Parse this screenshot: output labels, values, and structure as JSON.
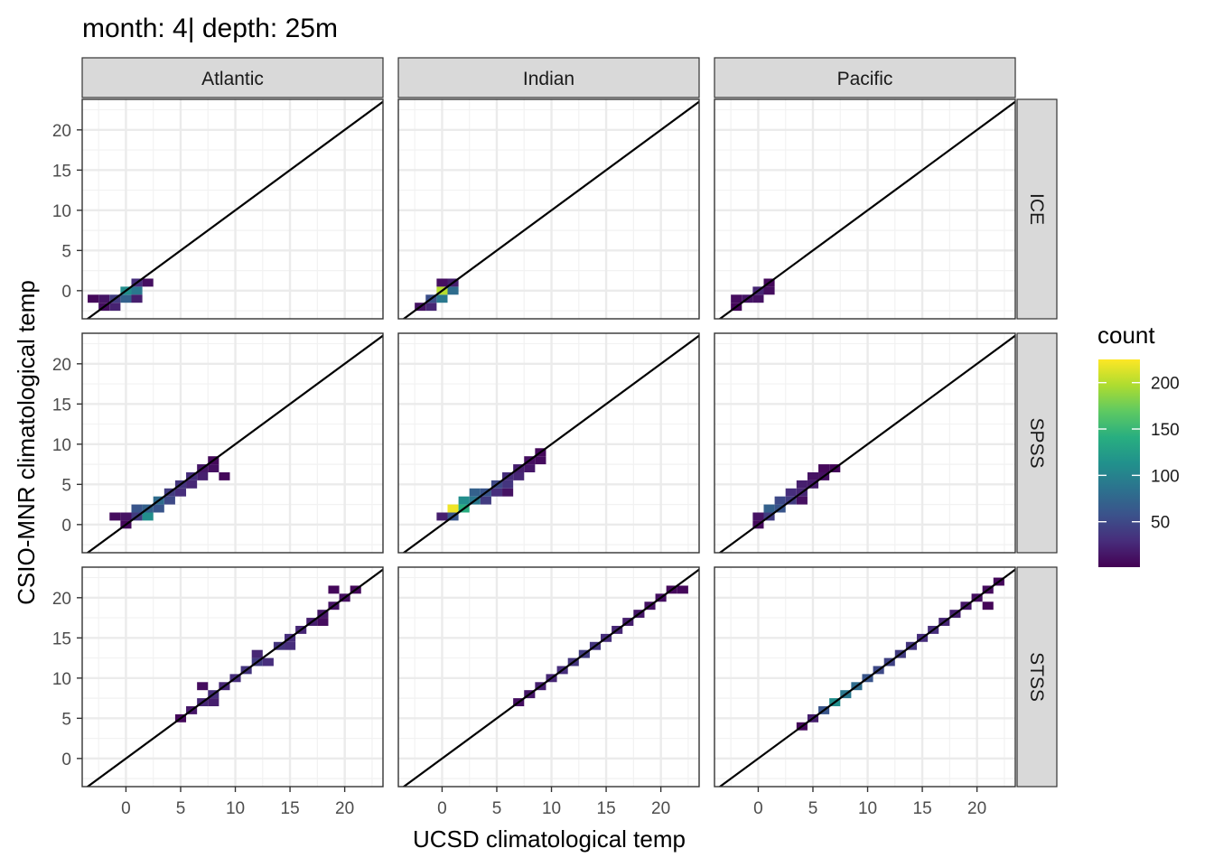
{
  "chart_data": {
    "type": "heatmap",
    "title": "month: 4| depth: 25m",
    "xlabel": "UCSD climatological temp",
    "ylabel": "CSIO-MNR climatological temp",
    "xlim": [
      -4,
      23.5
    ],
    "ylim": [
      -3.5,
      23.8
    ],
    "xticks": [
      0,
      5,
      10,
      15,
      20
    ],
    "yticks": [
      0,
      5,
      10,
      15,
      20
    ],
    "bin_width": 1,
    "grid": true,
    "reference_line": "y = x",
    "columns": [
      "Atlantic",
      "Indian",
      "Pacific"
    ],
    "rows": [
      "ICE",
      "SPSS",
      "STSS"
    ],
    "legend": {
      "title": "count",
      "position": "right",
      "breaks": [
        50,
        100,
        150,
        200
      ],
      "range": [
        1,
        225
      ],
      "palette": "viridis"
    },
    "panels": [
      {
        "row": "ICE",
        "col": "Atlantic",
        "cells": [
          [
            -3,
            -1,
            6
          ],
          [
            -2,
            -2,
            10
          ],
          [
            -2,
            -1,
            14
          ],
          [
            -1,
            -2,
            22
          ],
          [
            -1,
            -1,
            40
          ],
          [
            0,
            -1,
            70
          ],
          [
            0,
            0,
            110
          ],
          [
            1,
            0,
            90
          ],
          [
            1,
            1,
            30
          ],
          [
            2,
            1,
            10
          ],
          [
            1,
            -1,
            20
          ]
        ]
      },
      {
        "row": "ICE",
        "col": "Indian",
        "cells": [
          [
            -2,
            -2,
            12
          ],
          [
            -1,
            -2,
            25
          ],
          [
            -1,
            -1,
            55
          ],
          [
            0,
            -1,
            90
          ],
          [
            0,
            0,
            200
          ],
          [
            1,
            0,
            80
          ],
          [
            1,
            1,
            20
          ],
          [
            0,
            1,
            10
          ]
        ]
      },
      {
        "row": "ICE",
        "col": "Pacific",
        "cells": [
          [
            -2,
            -1,
            8
          ],
          [
            -2,
            -2,
            5
          ],
          [
            -1,
            -1,
            14
          ],
          [
            0,
            0,
            25
          ],
          [
            0,
            -1,
            12
          ],
          [
            1,
            0,
            9
          ],
          [
            1,
            1,
            6
          ]
        ]
      },
      {
        "row": "SPSS",
        "col": "Atlantic",
        "cells": [
          [
            -1,
            1,
            8
          ],
          [
            0,
            0,
            5
          ],
          [
            0,
            1,
            12
          ],
          [
            1,
            1,
            40
          ],
          [
            1,
            2,
            60
          ],
          [
            2,
            1,
            110
          ],
          [
            2,
            2,
            70
          ],
          [
            3,
            2,
            60
          ],
          [
            3,
            3,
            80
          ],
          [
            4,
            3,
            50
          ],
          [
            4,
            4,
            40
          ],
          [
            5,
            4,
            30
          ],
          [
            5,
            5,
            35
          ],
          [
            6,
            5,
            25
          ],
          [
            6,
            6,
            30
          ],
          [
            7,
            6,
            20
          ],
          [
            7,
            7,
            15
          ],
          [
            8,
            7,
            10
          ],
          [
            8,
            8,
            6
          ],
          [
            9,
            6,
            5
          ]
        ]
      },
      {
        "row": "SPSS",
        "col": "Indian",
        "cells": [
          [
            0,
            1,
            20
          ],
          [
            1,
            1,
            60
          ],
          [
            1,
            2,
            220
          ],
          [
            2,
            2,
            140
          ],
          [
            2,
            3,
            110
          ],
          [
            3,
            3,
            90
          ],
          [
            3,
            4,
            70
          ],
          [
            4,
            4,
            60
          ],
          [
            4,
            3,
            40
          ],
          [
            5,
            5,
            50
          ],
          [
            5,
            4,
            30
          ],
          [
            6,
            5,
            35
          ],
          [
            6,
            6,
            30
          ],
          [
            7,
            6,
            25
          ],
          [
            7,
            7,
            20
          ],
          [
            8,
            7,
            15
          ],
          [
            8,
            8,
            10
          ],
          [
            9,
            9,
            6
          ],
          [
            9,
            8,
            8
          ],
          [
            6,
            4,
            12
          ]
        ]
      },
      {
        "row": "SPSS",
        "col": "Pacific",
        "cells": [
          [
            0,
            0,
            6
          ],
          [
            0,
            1,
            12
          ],
          [
            1,
            1,
            40
          ],
          [
            1,
            2,
            70
          ],
          [
            2,
            2,
            60
          ],
          [
            2,
            3,
            50
          ],
          [
            3,
            3,
            40
          ],
          [
            3,
            4,
            30
          ],
          [
            4,
            4,
            25
          ],
          [
            4,
            5,
            20
          ],
          [
            5,
            5,
            18
          ],
          [
            5,
            6,
            12
          ],
          [
            6,
            6,
            10
          ],
          [
            6,
            7,
            6
          ],
          [
            7,
            7,
            5
          ],
          [
            4,
            3,
            10
          ]
        ]
      },
      {
        "row": "STSS",
        "col": "Atlantic",
        "cells": [
          [
            5,
            5,
            6
          ],
          [
            6,
            6,
            15
          ],
          [
            7,
            7,
            25
          ],
          [
            8,
            7,
            20
          ],
          [
            7,
            9,
            8
          ],
          [
            8,
            8,
            30
          ],
          [
            9,
            9,
            25
          ],
          [
            10,
            10,
            30
          ],
          [
            11,
            11,
            35
          ],
          [
            12,
            12,
            40
          ],
          [
            13,
            12,
            30
          ],
          [
            12,
            13,
            25
          ],
          [
            14,
            14,
            35
          ],
          [
            15,
            14,
            30
          ],
          [
            15,
            15,
            30
          ],
          [
            16,
            16,
            25
          ],
          [
            17,
            17,
            20
          ],
          [
            18,
            18,
            15
          ],
          [
            19,
            19,
            12
          ],
          [
            20,
            20,
            10
          ],
          [
            21,
            21,
            6
          ],
          [
            19,
            21,
            5
          ],
          [
            18,
            17,
            8
          ]
        ]
      },
      {
        "row": "STSS",
        "col": "Indian",
        "cells": [
          [
            7,
            7,
            10
          ],
          [
            8,
            8,
            15
          ],
          [
            9,
            9,
            20
          ],
          [
            10,
            10,
            25
          ],
          [
            11,
            11,
            30
          ],
          [
            12,
            12,
            35
          ],
          [
            13,
            13,
            40
          ],
          [
            14,
            14,
            35
          ],
          [
            15,
            15,
            30
          ],
          [
            16,
            16,
            25
          ],
          [
            17,
            17,
            20
          ],
          [
            18,
            18,
            15
          ],
          [
            19,
            19,
            12
          ],
          [
            20,
            20,
            10
          ],
          [
            21,
            21,
            6
          ],
          [
            22,
            21,
            5
          ]
        ]
      },
      {
        "row": "STSS",
        "col": "Pacific",
        "cells": [
          [
            4,
            4,
            6
          ],
          [
            5,
            5,
            20
          ],
          [
            6,
            6,
            60
          ],
          [
            7,
            7,
            110
          ],
          [
            8,
            8,
            90
          ],
          [
            9,
            9,
            80
          ],
          [
            10,
            10,
            60
          ],
          [
            11,
            11,
            50
          ],
          [
            12,
            12,
            45
          ],
          [
            13,
            13,
            40
          ],
          [
            14,
            14,
            35
          ],
          [
            15,
            15,
            30
          ],
          [
            16,
            16,
            30
          ],
          [
            17,
            17,
            25
          ],
          [
            18,
            18,
            20
          ],
          [
            19,
            19,
            15
          ],
          [
            20,
            20,
            10
          ],
          [
            21,
            21,
            8
          ],
          [
            22,
            22,
            5
          ],
          [
            21,
            19,
            4
          ]
        ]
      }
    ]
  }
}
